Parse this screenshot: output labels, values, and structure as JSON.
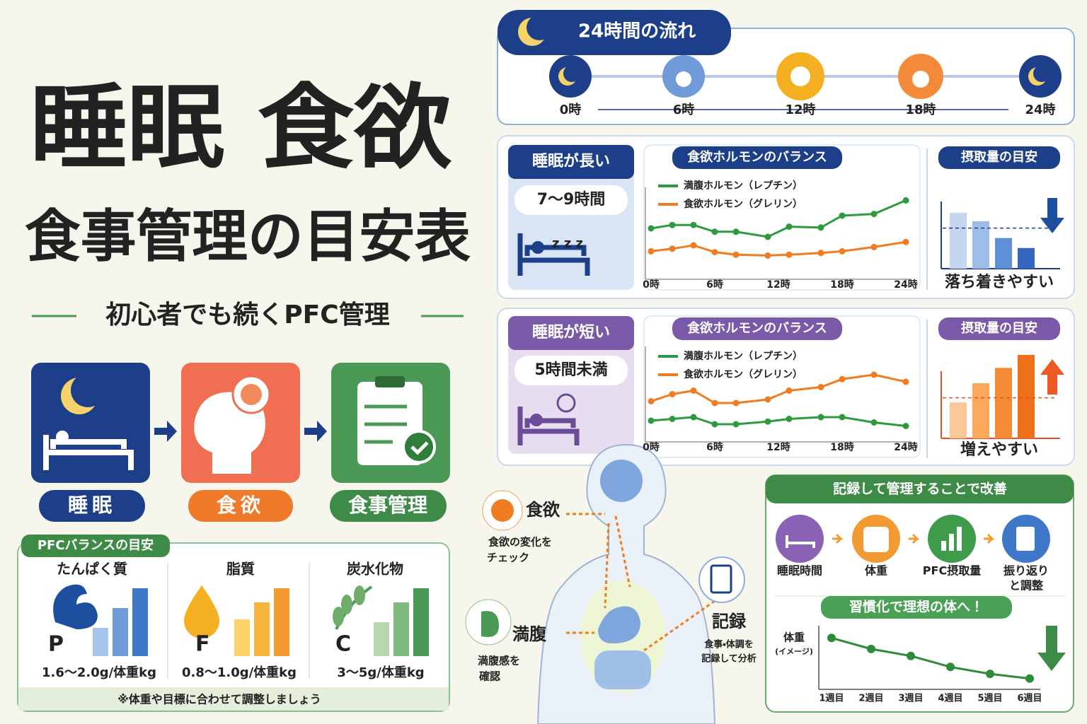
{
  "header": {
    "title_line1": "睡眠 食欲",
    "title_line2": "食事管理の目安表",
    "subtitle": "初心者でも続くPFC管理"
  },
  "flow": {
    "steps": [
      "睡眠",
      "食欲",
      "食事管理"
    ]
  },
  "pfc": {
    "heading": "PFCバランスの目安",
    "items": [
      {
        "name": "たんぱく質",
        "letter": "P",
        "range": "1.6～2.0g/体重kg"
      },
      {
        "name": "脂質",
        "letter": "F",
        "range": "0.8～1.0g/体重kg"
      },
      {
        "name": "炭水化物",
        "letter": "C",
        "range": "3～5g/体重kg"
      }
    ],
    "note": "※体重や目標に合わせて調整しましょう"
  },
  "timeline": {
    "title": "24時間の流れ",
    "labels": [
      "0時",
      "6時",
      "12時",
      "18時",
      "24時"
    ]
  },
  "long_sleep": {
    "tag": "睡眠が長い",
    "hours": "7～9時間"
  },
  "short_sleep": {
    "tag": "睡眠が短い",
    "hours": "5時間未満"
  },
  "body": {
    "appetite": {
      "label": "食欲",
      "lines": [
        "食欲の変化を",
        "チェック"
      ]
    },
    "fullness": {
      "label": "満腹",
      "lines": [
        "満腹感を",
        "確認"
      ]
    },
    "record": {
      "label": "記録",
      "lines": [
        "食事・体調を",
        "記録して分析"
      ]
    }
  },
  "record_panel": {
    "title": "記録して管理することで改善",
    "steps": [
      [
        "睡眠時間"
      ],
      [
        "体重"
      ],
      [
        "PFC摂取量"
      ],
      [
        "振り返り",
        "と調整"
      ]
    ]
  },
  "chart_data": [
    {
      "type": "line",
      "title": "食欲ホルモンのバランス",
      "x": [
        0,
        2,
        4,
        6,
        8,
        11,
        13,
        16,
        18,
        21,
        24
      ],
      "xlim": [
        0,
        24
      ],
      "xticks": [
        {
          "value": 0,
          "label": "0時"
        },
        {
          "value": 6,
          "label": "6時"
        },
        {
          "value": 12,
          "label": "12時"
        },
        {
          "value": 18,
          "label": "18時"
        },
        {
          "value": 24,
          "label": "24時"
        }
      ],
      "ylim": [
        0,
        100
      ],
      "series": [
        {
          "name": "満腹ホルモン（レプチン）",
          "color": "#2e9a3e",
          "values": [
            60,
            64,
            64,
            56,
            56,
            50,
            62,
            61,
            75,
            77,
            93
          ]
        },
        {
          "name": "食欲ホルモン（グレリン）",
          "color": "#f07c22",
          "values": [
            33,
            36,
            40,
            32,
            29,
            28,
            29,
            31,
            33,
            38,
            44
          ]
        }
      ]
    },
    {
      "type": "bar",
      "title": "摂取量の目安",
      "annotation": "落ち着きやすい",
      "values": [
        73,
        62,
        40,
        27
      ],
      "colors": [
        "#c5d6ef",
        "#9dbde8",
        "#5f8fd6",
        "#3567be"
      ],
      "reference": 53,
      "ylim": [
        0,
        120
      ],
      "color": "#1d3f8a"
    },
    {
      "type": "line",
      "title": "食欲ホルモンのバランス",
      "x": [
        0,
        2,
        4,
        6,
        8,
        11,
        13,
        16,
        18,
        21,
        24
      ],
      "xlim": [
        0,
        24
      ],
      "xticks": [
        {
          "value": 0,
          "label": "0時"
        },
        {
          "value": 6,
          "label": "6時"
        },
        {
          "value": 12,
          "label": "12時"
        },
        {
          "value": 18,
          "label": "18時"
        },
        {
          "value": 24,
          "label": "24時"
        }
      ],
      "ylim": [
        0,
        100
      ],
      "series": [
        {
          "name": "満腹ホルモン（レプチン）",
          "color": "#2e9a3e",
          "values": [
            24,
            26,
            28,
            20,
            20,
            23,
            26,
            28,
            28,
            22,
            18
          ]
        },
        {
          "name": "食欲ホルモン（グレリン）",
          "color": "#f07c22",
          "values": [
            46,
            54,
            58,
            44,
            44,
            48,
            58,
            62,
            71,
            76,
            68
          ]
        }
      ]
    },
    {
      "type": "bar",
      "title": "摂取量の目安",
      "annotation": "増えやすい",
      "values": [
        47,
        72,
        92,
        109
      ],
      "colors": [
        "#fbc89a",
        "#f9a85c",
        "#f58a35",
        "#ef6f1a"
      ],
      "reference": 53,
      "ylim": [
        0,
        120
      ],
      "color": "#e8502a"
    },
    {
      "type": "line",
      "title": "習慣化で理想の体へ！",
      "y_label": "体重",
      "y_note": "(イメージ)",
      "categories": [
        "1週目",
        "2週目",
        "3週目",
        "4週目",
        "5週目",
        "6週目"
      ],
      "values": [
        85,
        66,
        54,
        35,
        23,
        15
      ],
      "ylim": [
        0,
        100
      ],
      "color": "#2e8b3a"
    }
  ]
}
